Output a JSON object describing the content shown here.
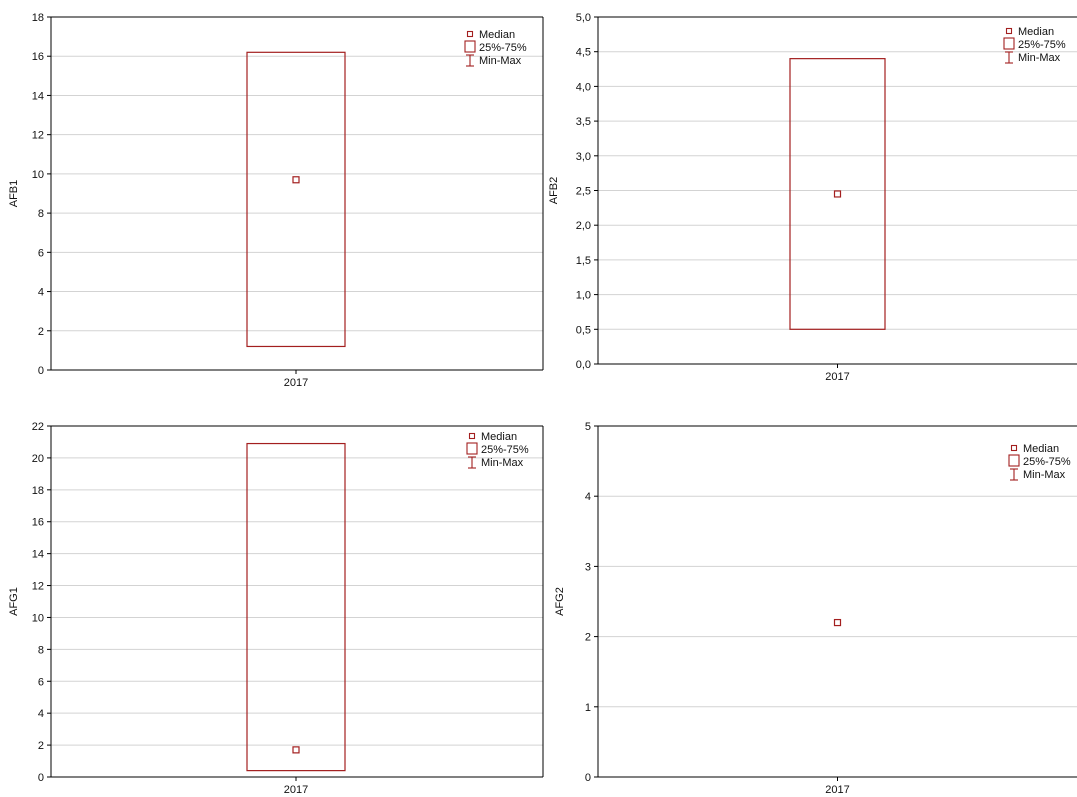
{
  "legend": {
    "median": "Median",
    "iqr": "25%-75%",
    "range": "Min-Max"
  },
  "colors": {
    "box": "#a31f1f",
    "grid": "#d3d3d3",
    "axis": "#000000"
  },
  "chart_data": [
    {
      "type": "box",
      "ylabel": "AFB1",
      "ylim": [
        0,
        18
      ],
      "yticks": [
        "0",
        "2",
        "4",
        "6",
        "8",
        "10",
        "12",
        "14",
        "16",
        "18"
      ],
      "categories": [
        "2017"
      ],
      "q1": 1.2,
      "q3": 16.2,
      "median": 9.7,
      "legend_position": "top-right",
      "grid": true
    },
    {
      "type": "box",
      "ylabel": "AFB2",
      "ylim": [
        0,
        5
      ],
      "yticks": [
        "0,0",
        "0,5",
        "1,0",
        "1,5",
        "2,0",
        "2,5",
        "3,0",
        "3,5",
        "4,0",
        "4,5",
        "5,0"
      ],
      "categories": [
        "2017"
      ],
      "q1": 0.5,
      "q3": 4.4,
      "median": 2.45,
      "legend_position": "top-right",
      "grid": true
    },
    {
      "type": "box",
      "ylabel": "AFG1",
      "ylim": [
        0,
        22
      ],
      "yticks": [
        "0",
        "2",
        "4",
        "6",
        "8",
        "10",
        "12",
        "14",
        "16",
        "18",
        "20",
        "22"
      ],
      "categories": [
        "2017"
      ],
      "q1": 0.4,
      "q3": 20.9,
      "median": 1.7,
      "legend_position": "top-right",
      "grid": true
    },
    {
      "type": "box",
      "ylabel": "AFG2",
      "ylim": [
        0,
        5
      ],
      "yticks": [
        "0",
        "1",
        "2",
        "3",
        "4",
        "5"
      ],
      "categories": [
        "2017"
      ],
      "q1": 2.2,
      "q3": 2.2,
      "median": 2.2,
      "legend_position": "top-right",
      "grid": true
    }
  ]
}
